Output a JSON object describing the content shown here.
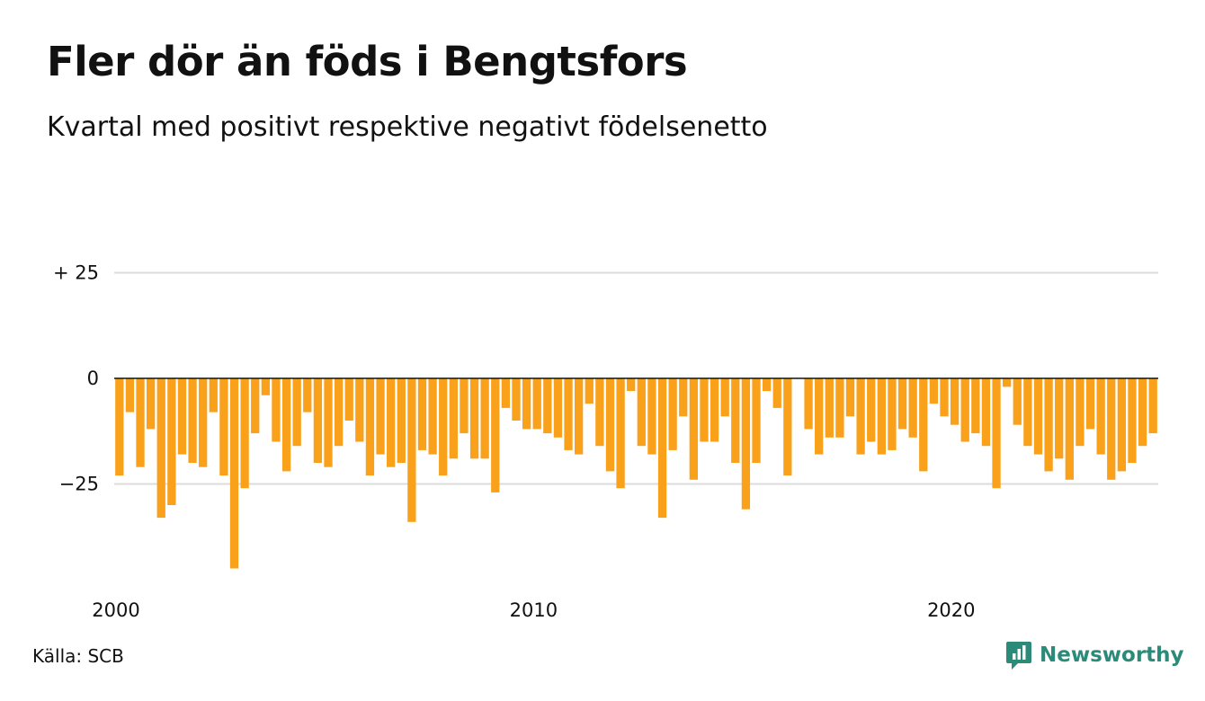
{
  "chart_data": {
    "type": "bar",
    "title": "Fler dör än föds i Bengtsfors",
    "subtitle": "Kvartal med positivt respektive negativt födelsenetto",
    "x_tick_labels": [
      "2000",
      "2010",
      "2020"
    ],
    "y_ticks": [
      {
        "value": 25,
        "label": "+ 25"
      },
      {
        "value": 0,
        "label": "0"
      },
      {
        "value": -25,
        "label": "−25"
      }
    ],
    "ylim": [
      -46,
      25
    ],
    "x_start": "2000 Q1",
    "period": "quarter",
    "bar_color": "#f9a11b",
    "values": [
      -23,
      -8,
      -21,
      -12,
      -33,
      -30,
      -18,
      -20,
      -21,
      -8,
      -23,
      -45,
      -26,
      -13,
      -4,
      -15,
      -22,
      -16,
      -8,
      -20,
      -21,
      -16,
      -10,
      -15,
      -23,
      -18,
      -21,
      -20,
      -34,
      -17,
      -18,
      -23,
      -19,
      -13,
      -19,
      -19,
      -27,
      -7,
      -10,
      -12,
      -12,
      -13,
      -14,
      -17,
      -18,
      -6,
      -16,
      -22,
      -26,
      -3,
      -16,
      -18,
      -33,
      -17,
      -9,
      -24,
      -15,
      -15,
      -9,
      -20,
      -31,
      -20,
      -3,
      -7,
      -23,
      0,
      -12,
      -18,
      -14,
      -14,
      -9,
      -18,
      -15,
      -18,
      -17,
      -12,
      -14,
      -22,
      -6,
      -9,
      -11,
      -15,
      -13,
      -16,
      -26,
      -2,
      -11,
      -16,
      -18,
      -22,
      -19,
      -24,
      -16,
      -12,
      -18,
      -24,
      -22,
      -20,
      -16,
      -13
    ],
    "grid": true,
    "source": "Källa: SCB"
  },
  "footer": {
    "source": "Källa: SCB",
    "brand": "Newsworthy",
    "brand_color": "#2b8a78"
  }
}
